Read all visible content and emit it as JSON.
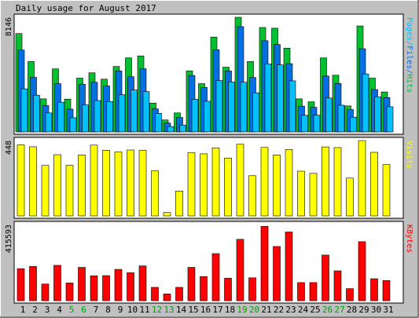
{
  "title": "Daily usage for August 2017",
  "chart_data": [
    {
      "type": "bar",
      "panel": "hits-files-pages",
      "ylabel": "Pages/Files/Hits",
      "ymax_label": "8146",
      "ylim": [
        0,
        8146
      ],
      "categories": [
        "1",
        "2",
        "3",
        "4",
        "5",
        "6",
        "7",
        "8",
        "9",
        "10",
        "11",
        "12",
        "13",
        "14",
        "15",
        "16",
        "17",
        "18",
        "19",
        "20",
        "21",
        "22",
        "23",
        "24",
        "25",
        "26",
        "27",
        "28",
        "29",
        "30",
        "31"
      ],
      "weekend_days": [
        "5",
        "6",
        "12",
        "13",
        "19",
        "20",
        "26",
        "27"
      ],
      "series": [
        {
          "name": "Hits",
          "color": "#00c030",
          "values": [
            6990,
            5000,
            2350,
            4480,
            2330,
            3820,
            4200,
            3750,
            4650,
            5260,
            5400,
            2050,
            850,
            1350,
            4330,
            3430,
            6740,
            4600,
            8146,
            5000,
            7420,
            7370,
            5950,
            2350,
            2140,
            5260,
            4030,
            1850,
            7530,
            3820,
            2840
          ]
        },
        {
          "name": "Files",
          "color": "#0070e0",
          "values": [
            5820,
            3880,
            1870,
            3430,
            1620,
            3390,
            3530,
            3270,
            4330,
            3920,
            4490,
            1640,
            630,
            1030,
            4010,
            3160,
            5840,
            4330,
            7480,
            3870,
            6480,
            6210,
            4850,
            1830,
            1750,
            3970,
            3440,
            1590,
            5910,
            3010,
            2440
          ]
        },
        {
          "name": "Pages",
          "color": "#00c0ff",
          "values": [
            3060,
            2610,
            1350,
            2110,
            1010,
            1920,
            2230,
            2160,
            2640,
            2980,
            2870,
            1320,
            380,
            480,
            2320,
            2180,
            3650,
            3550,
            3530,
            2780,
            4830,
            4760,
            3630,
            1180,
            1190,
            2410,
            1900,
            1050,
            4120,
            2500,
            1790
          ]
        }
      ]
    },
    {
      "type": "bar",
      "panel": "visits",
      "ylabel": "Visits",
      "ymax_label": "448",
      "ylim": [
        0,
        448
      ],
      "categories": [
        "1",
        "2",
        "3",
        "4",
        "5",
        "6",
        "7",
        "8",
        "9",
        "10",
        "11",
        "12",
        "13",
        "14",
        "15",
        "16",
        "17",
        "18",
        "19",
        "20",
        "21",
        "22",
        "23",
        "24",
        "25",
        "26",
        "27",
        "28",
        "29",
        "30",
        "31"
      ],
      "series": [
        {
          "name": "Visits",
          "color": "#ffff00",
          "values": [
            423,
            411,
            300,
            364,
            301,
            362,
            421,
            390,
            380,
            392,
            389,
            268,
            20,
            148,
            377,
            369,
            404,
            344,
            426,
            239,
            407,
            362,
            395,
            266,
            253,
            410,
            406,
            225,
            448,
            378,
            305
          ]
        }
      ]
    },
    {
      "type": "bar",
      "panel": "kbytes",
      "ylabel": "KBytes",
      "ymax_label": "415593",
      "ylim": [
        0,
        415593
      ],
      "categories": [
        "1",
        "2",
        "3",
        "4",
        "5",
        "6",
        "7",
        "8",
        "9",
        "10",
        "11",
        "12",
        "13",
        "14",
        "15",
        "16",
        "17",
        "18",
        "19",
        "20",
        "21",
        "22",
        "23",
        "24",
        "25",
        "26",
        "27",
        "28",
        "29",
        "30",
        "31"
      ],
      "series": [
        {
          "name": "KBytes",
          "color": "#ff0000",
          "values": [
            175000,
            187000,
            91000,
            193000,
            97000,
            182000,
            136000,
            137000,
            171000,
            153000,
            190000,
            73000,
            37000,
            73000,
            182000,
            132000,
            257000,
            123000,
            335000,
            125000,
            406000,
            296000,
            375000,
            99000,
            99000,
            249000,
            163000,
            66000,
            322000,
            120000,
            110000
          ]
        }
      ]
    }
  ]
}
